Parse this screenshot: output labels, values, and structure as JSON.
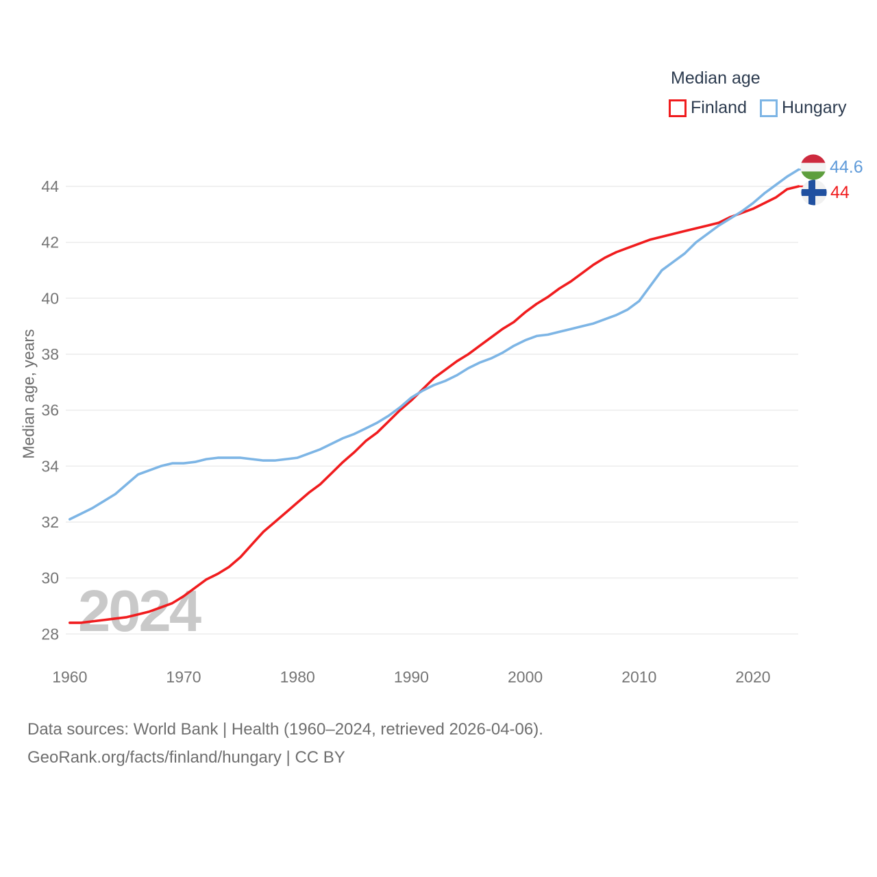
{
  "legend": {
    "title": "Median age",
    "items": [
      {
        "label": "Finland",
        "color": "#f01c1e"
      },
      {
        "label": "Hungary",
        "color": "#7db5e5"
      }
    ]
  },
  "chart_data": {
    "type": "line",
    "title": "Median age",
    "xlabel": "",
    "ylabel": "Median age, years",
    "grid": true,
    "legend_position": "top-right",
    "watermark": "2024",
    "ylim": [
      27.6,
      45.2
    ],
    "xlim": [
      1960,
      2024
    ],
    "yticks": [
      28,
      30,
      32,
      34,
      36,
      38,
      40,
      42,
      44
    ],
    "xticks": [
      1960,
      1970,
      1980,
      1990,
      2000,
      2010,
      2020
    ],
    "years": [
      1960,
      1961,
      1962,
      1963,
      1964,
      1965,
      1966,
      1967,
      1968,
      1969,
      1970,
      1971,
      1972,
      1973,
      1974,
      1975,
      1976,
      1977,
      1978,
      1979,
      1980,
      1981,
      1982,
      1983,
      1984,
      1985,
      1986,
      1987,
      1988,
      1989,
      1990,
      1991,
      1992,
      1993,
      1994,
      1995,
      1996,
      1997,
      1998,
      1999,
      2000,
      2001,
      2002,
      2003,
      2004,
      2005,
      2006,
      2007,
      2008,
      2009,
      2010,
      2011,
      2012,
      2013,
      2014,
      2015,
      2016,
      2017,
      2018,
      2019,
      2020,
      2021,
      2022,
      2023,
      2024
    ],
    "series": [
      {
        "name": "Finland",
        "color": "#f01c1e",
        "end_label": "44",
        "end_label_color": "#f01c1e",
        "flag_icon": "finland-flag-icon",
        "values": [
          28.4,
          28.4,
          28.45,
          28.5,
          28.55,
          28.6,
          28.7,
          28.8,
          28.95,
          29.1,
          29.35,
          29.65,
          29.95,
          30.15,
          30.4,
          30.75,
          31.2,
          31.65,
          32.0,
          32.35,
          32.7,
          33.05,
          33.35,
          33.75,
          34.15,
          34.5,
          34.9,
          35.2,
          35.6,
          36.0,
          36.35,
          36.75,
          37.15,
          37.45,
          37.75,
          38.0,
          38.3,
          38.6,
          38.9,
          39.15,
          39.5,
          39.8,
          40.05,
          40.35,
          40.6,
          40.9,
          41.2,
          41.45,
          41.65,
          41.8,
          41.95,
          42.1,
          42.2,
          42.3,
          42.4,
          42.5,
          42.6,
          42.7,
          42.9,
          43.05,
          43.2,
          43.4,
          43.6,
          43.9,
          44.0
        ]
      },
      {
        "name": "Hungary",
        "color": "#7db5e5",
        "end_label": "44.6",
        "end_label_color": "#5e9ad9",
        "flag_icon": "hungary-flag-icon",
        "values": [
          32.1,
          32.3,
          32.5,
          32.75,
          33.0,
          33.35,
          33.7,
          33.85,
          34.0,
          34.1,
          34.1,
          34.15,
          34.25,
          34.3,
          34.3,
          34.3,
          34.25,
          34.2,
          34.2,
          34.25,
          34.3,
          34.45,
          34.6,
          34.8,
          35.0,
          35.15,
          35.35,
          35.55,
          35.8,
          36.1,
          36.45,
          36.7,
          36.9,
          37.05,
          37.25,
          37.5,
          37.7,
          37.85,
          38.05,
          38.3,
          38.5,
          38.65,
          38.7,
          38.8,
          38.9,
          39.0,
          39.1,
          39.25,
          39.4,
          39.6,
          39.9,
          40.45,
          41.0,
          41.3,
          41.6,
          42.0,
          42.3,
          42.6,
          42.85,
          43.1,
          43.4,
          43.75,
          44.05,
          44.35,
          44.6
        ]
      }
    ]
  },
  "axis": {
    "tick_color": "#757575",
    "grid_color": "#ececec",
    "watermark_color": "#c9c9c9"
  },
  "footer": {
    "line1": "Data sources: World Bank | Health (1960–2024, retrieved 2026-04-06).",
    "line2": "GeoRank.org/facts/finland/hungary | CC BY"
  }
}
